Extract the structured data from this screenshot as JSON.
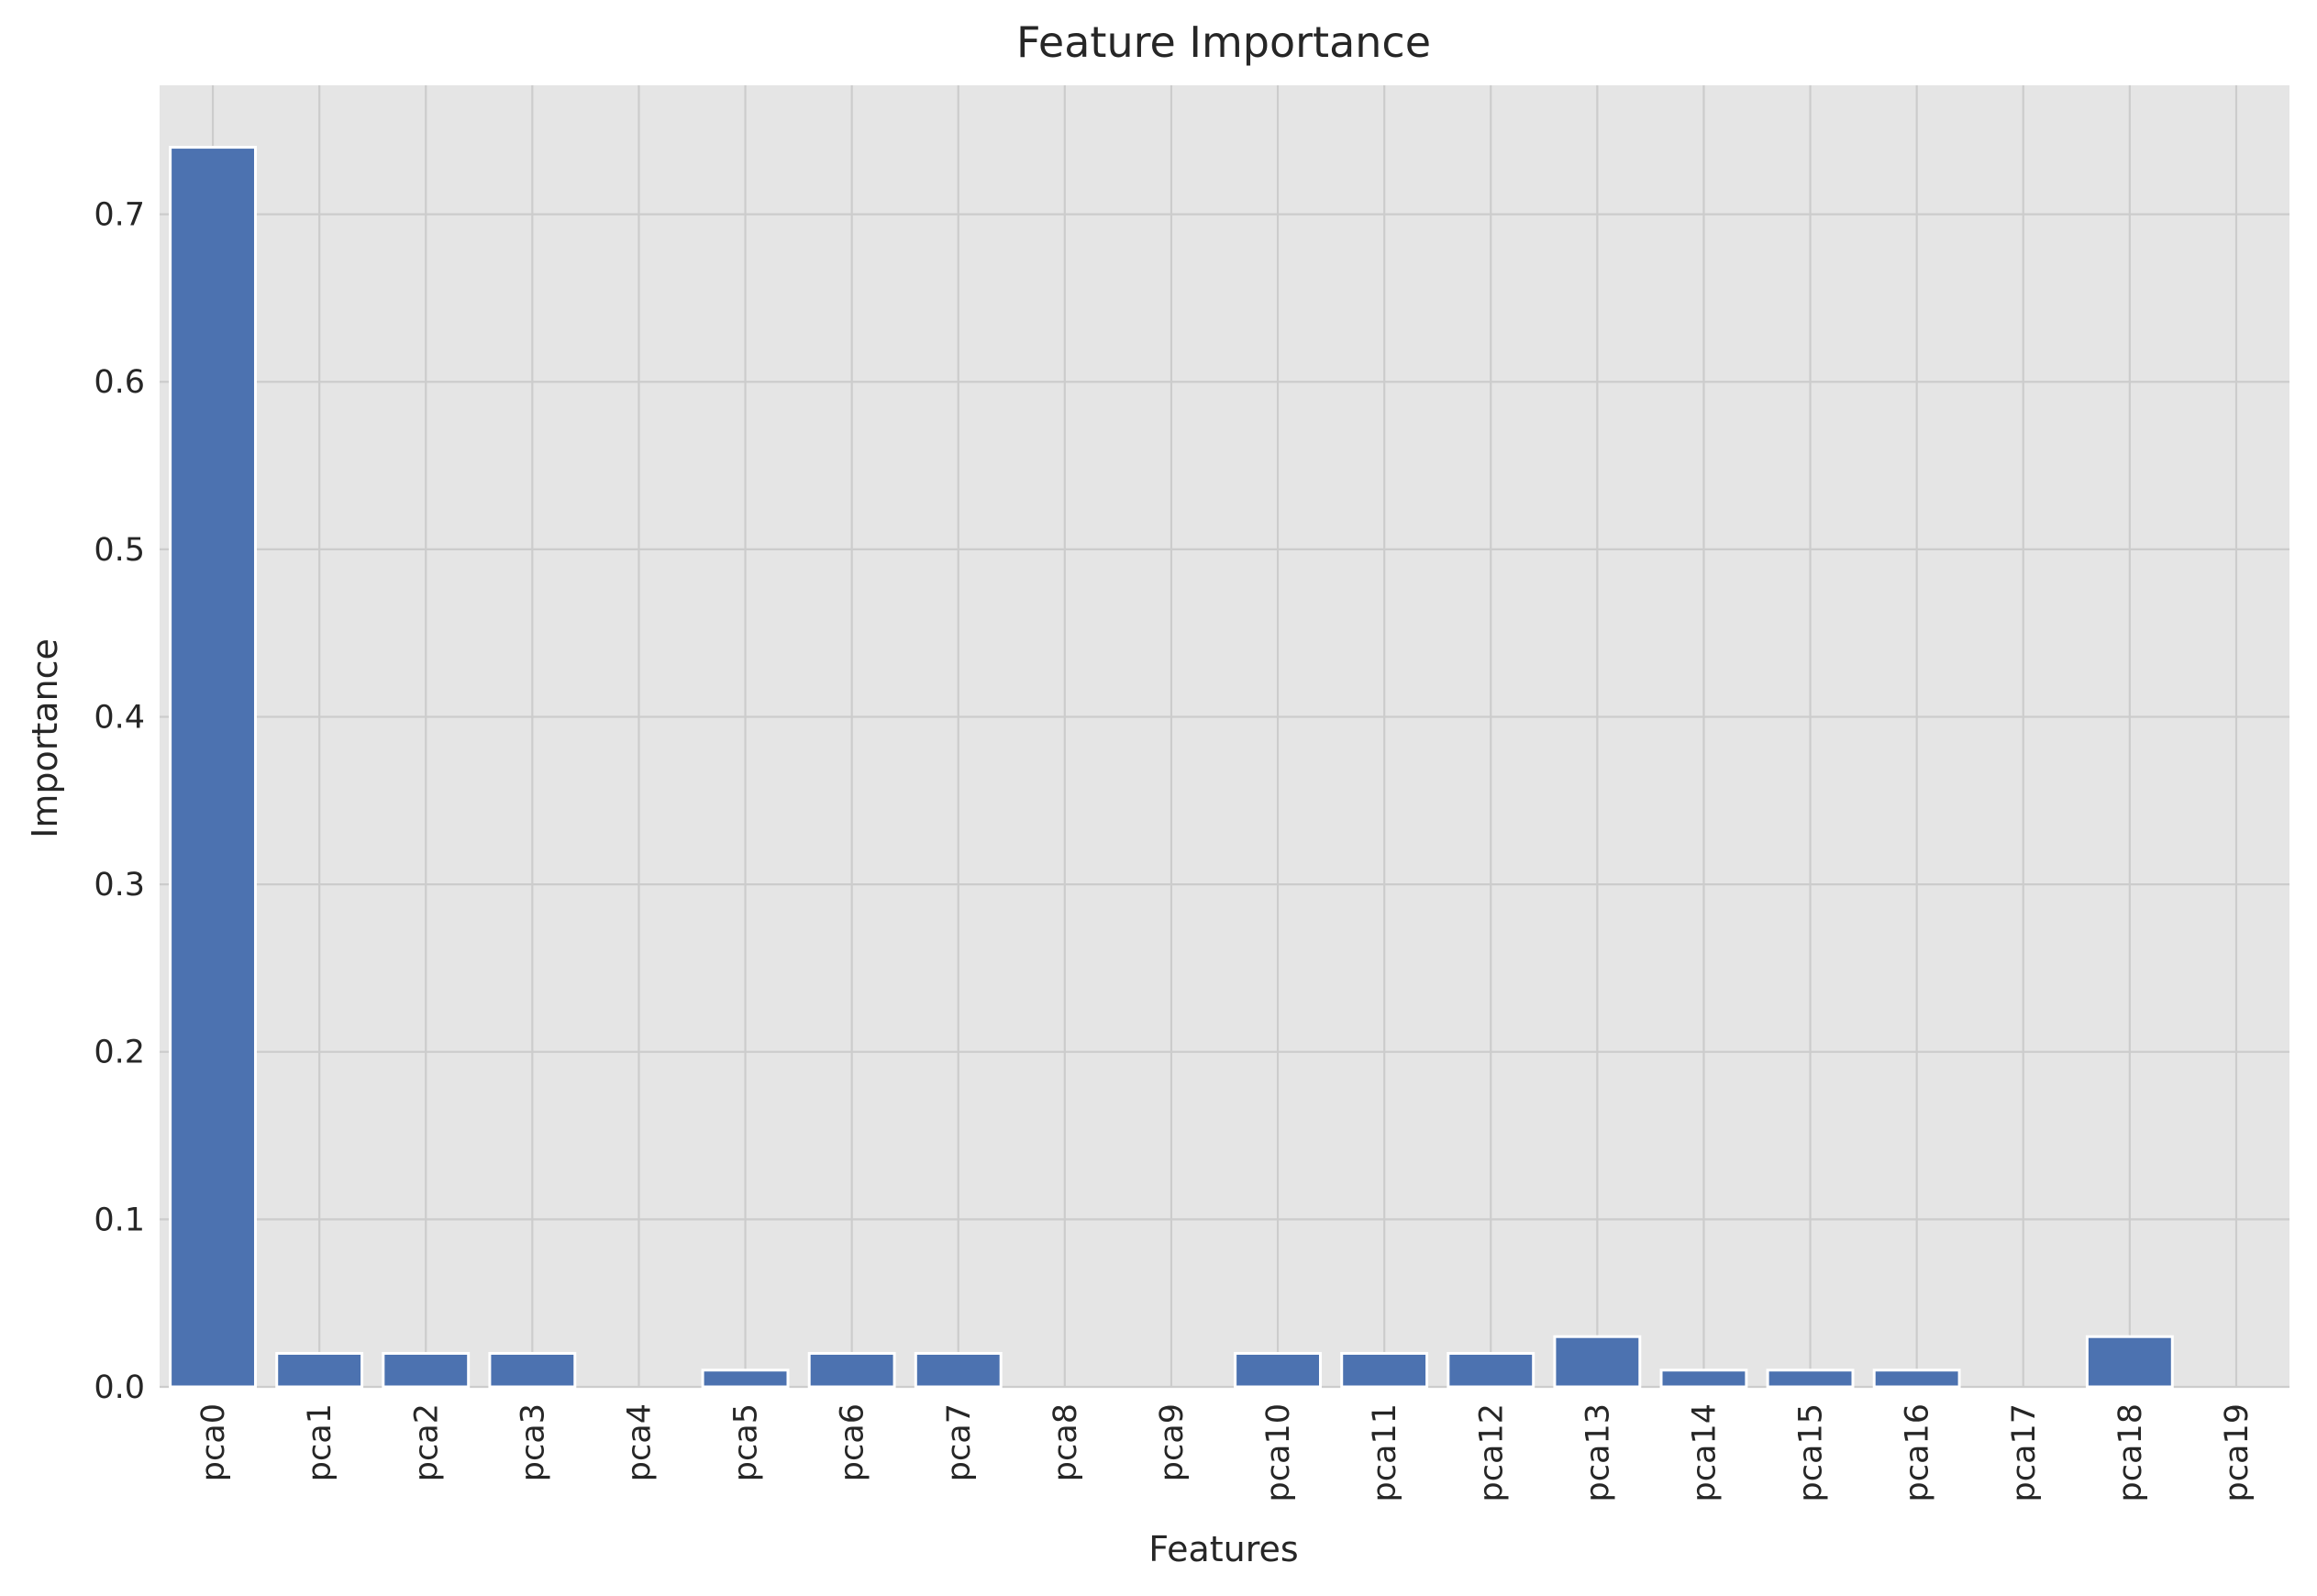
{
  "chart_data": {
    "type": "bar",
    "title": "Feature Importance",
    "xlabel": "Features",
    "ylabel": "Importance",
    "categories": [
      "pca0",
      "pca1",
      "pca2",
      "pca3",
      "pca4",
      "pca5",
      "pca6",
      "pca7",
      "pca8",
      "pca9",
      "pca10",
      "pca11",
      "pca12",
      "pca13",
      "pca14",
      "pca15",
      "pca16",
      "pca17",
      "pca18",
      "pca19"
    ],
    "values": [
      0.74,
      0.02,
      0.02,
      0.02,
      0.0,
      0.01,
      0.02,
      0.02,
      0.0,
      0.0,
      0.02,
      0.02,
      0.02,
      0.03,
      0.01,
      0.01,
      0.01,
      0.0,
      0.03,
      0.0
    ],
    "ylim": [
      0,
      0.777
    ],
    "yticks": [
      0.0,
      0.1,
      0.2,
      0.3,
      0.4,
      0.5,
      0.6,
      0.7
    ],
    "grid": true,
    "legend": "none",
    "colors": {
      "bar": "#4c72b0",
      "plot_background": "#e5e5e5",
      "grid": "#cccccc",
      "text": "#262626"
    }
  }
}
